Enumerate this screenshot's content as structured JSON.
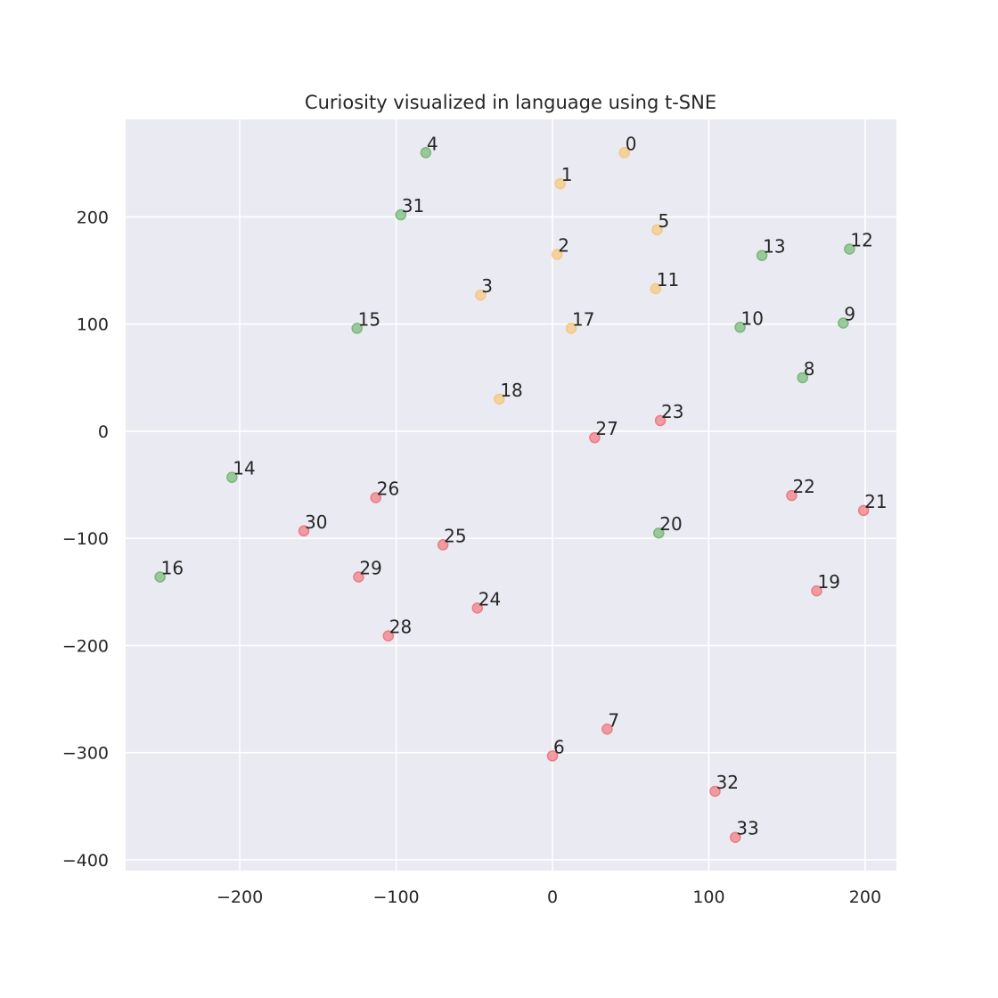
{
  "chart_data": {
    "type": "scatter",
    "title": "Curiosity visualized in language using t-SNE",
    "xlabel": "",
    "ylabel": "",
    "xlim": [
      -273,
      220
    ],
    "ylim": [
      -410,
      291
    ],
    "xticks": [
      -200,
      -100,
      0,
      100,
      200
    ],
    "yticks": [
      -400,
      -300,
      -200,
      -100,
      0,
      100,
      200
    ],
    "xtick_labels": [
      "−200",
      "−100",
      "0",
      "100",
      "200"
    ],
    "ytick_labels": [
      "−400",
      "−300",
      "−200",
      "−100",
      "0",
      "100",
      "200"
    ],
    "grid": true,
    "colors": {
      "orange": "#f5c77e",
      "green": "#78b978",
      "red": "#ef7b82",
      "background": "#eaeaf2",
      "grid": "#ffffff"
    },
    "points": [
      {
        "label": "0",
        "x": 46,
        "y": 260,
        "color": "orange"
      },
      {
        "label": "1",
        "x": 5,
        "y": 231,
        "color": "orange"
      },
      {
        "label": "2",
        "x": 3,
        "y": 165,
        "color": "orange"
      },
      {
        "label": "3",
        "x": -46,
        "y": 127,
        "color": "orange"
      },
      {
        "label": "4",
        "x": -81,
        "y": 260,
        "color": "green"
      },
      {
        "label": "5",
        "x": 67,
        "y": 188,
        "color": "orange"
      },
      {
        "label": "6",
        "x": 0,
        "y": -303,
        "color": "red"
      },
      {
        "label": "7",
        "x": 35,
        "y": -278,
        "color": "red"
      },
      {
        "label": "8",
        "x": 160,
        "y": 50,
        "color": "green"
      },
      {
        "label": "9",
        "x": 186,
        "y": 101,
        "color": "green"
      },
      {
        "label": "10",
        "x": 120,
        "y": 97,
        "color": "green"
      },
      {
        "label": "11",
        "x": 66,
        "y": 133,
        "color": "orange"
      },
      {
        "label": "12",
        "x": 190,
        "y": 170,
        "color": "green"
      },
      {
        "label": "13",
        "x": 134,
        "y": 164,
        "color": "green"
      },
      {
        "label": "14",
        "x": -205,
        "y": -43,
        "color": "green"
      },
      {
        "label": "15",
        "x": -125,
        "y": 96,
        "color": "green"
      },
      {
        "label": "16",
        "x": -251,
        "y": -136,
        "color": "green"
      },
      {
        "label": "17",
        "x": 12,
        "y": 96,
        "color": "orange"
      },
      {
        "label": "18",
        "x": -34,
        "y": 30,
        "color": "orange"
      },
      {
        "label": "19",
        "x": 169,
        "y": -149,
        "color": "red"
      },
      {
        "label": "20",
        "x": 68,
        "y": -95,
        "color": "green"
      },
      {
        "label": "21",
        "x": 199,
        "y": -74,
        "color": "red"
      },
      {
        "label": "22",
        "x": 153,
        "y": -60,
        "color": "red"
      },
      {
        "label": "23",
        "x": 69,
        "y": 10,
        "color": "red"
      },
      {
        "label": "24",
        "x": -48,
        "y": -165,
        "color": "red"
      },
      {
        "label": "25",
        "x": -70,
        "y": -106,
        "color": "red"
      },
      {
        "label": "26",
        "x": -113,
        "y": -62,
        "color": "red"
      },
      {
        "label": "27",
        "x": 27,
        "y": -6,
        "color": "red"
      },
      {
        "label": "28",
        "x": -105,
        "y": -191,
        "color": "red"
      },
      {
        "label": "29",
        "x": -124,
        "y": -136,
        "color": "red"
      },
      {
        "label": "30",
        "x": -159,
        "y": -93,
        "color": "red"
      },
      {
        "label": "31",
        "x": -97,
        "y": 202,
        "color": "green"
      },
      {
        "label": "32",
        "x": 104,
        "y": -336,
        "color": "red"
      },
      {
        "label": "33",
        "x": 117,
        "y": -379,
        "color": "red"
      }
    ]
  }
}
